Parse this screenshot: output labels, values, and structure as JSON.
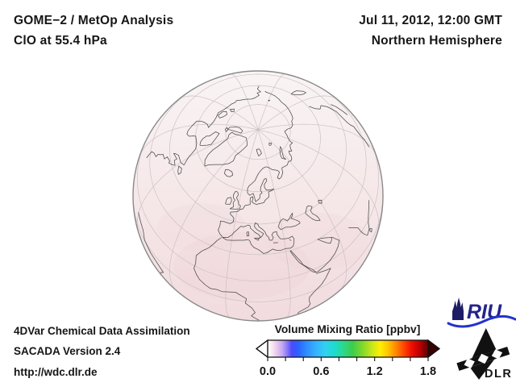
{
  "header": {
    "title_line1": "GOME−2 / MetOp Analysis",
    "title_line2": "ClO at 55.4 hPa",
    "date": "Jul 11, 2012, 12:00 GMT",
    "hemisphere": "Northern Hemisphere"
  },
  "footer": {
    "line1": "4DVar Chemical Data Assimilation",
    "line2": "SACADA Version 2.4",
    "line3": "http://wdc.dlr.de"
  },
  "logos": {
    "riu_text": "RIU",
    "dlr_text": "DLR",
    "riu_color": "#24248c",
    "riu_wave_color": "#2233cc",
    "dlr_color": "#161616"
  },
  "colorbar": {
    "title": "Volume Mixing Ratio [ppbv]",
    "min": 0,
    "max": 1.8,
    "major_ticks": [
      0,
      0.6,
      1.2,
      1.8
    ],
    "tick_labels": [
      "0.0",
      "0.6",
      "1.2",
      "1.8"
    ],
    "minor_tick_step": 0.2,
    "under_arrow_color": "#ffffff",
    "over_arrow_color": "#3a0000",
    "gradient": [
      [
        0.0,
        "#ffffff"
      ],
      [
        0.025,
        "#f7ebf2"
      ],
      [
        0.06,
        "#e6c6ee"
      ],
      [
        0.09,
        "#c3a8f2"
      ],
      [
        0.12,
        "#8c7cf8"
      ],
      [
        0.15,
        "#4b4bff"
      ],
      [
        0.19,
        "#2b62ff"
      ],
      [
        0.24,
        "#2e8cff"
      ],
      [
        0.3,
        "#35b2ff"
      ],
      [
        0.36,
        "#2fd2f0"
      ],
      [
        0.42,
        "#1edccb"
      ],
      [
        0.47,
        "#2ad98e"
      ],
      [
        0.53,
        "#3ecc4a"
      ],
      [
        0.59,
        "#7fd82b"
      ],
      [
        0.65,
        "#c8e61a"
      ],
      [
        0.7,
        "#fdf002"
      ],
      [
        0.75,
        "#ffc400"
      ],
      [
        0.8,
        "#ff8800"
      ],
      [
        0.85,
        "#ff4400"
      ],
      [
        0.895,
        "#f01000"
      ],
      [
        0.945,
        "#c00000"
      ],
      [
        1.0,
        "#5e0000"
      ]
    ]
  },
  "chart_data": {
    "type": "heatmap",
    "title": "GOME−2 / MetOp Analysis, ClO at 55.4 hPa",
    "timestamp": "Jul 11, 2012, 12:00 GMT",
    "region": "Northern Hemisphere",
    "projection": "orthographic globe centered near 58N 15E (North Atlantic / Europe view)",
    "variable": "ClO Volume Mixing Ratio",
    "unit": "ppbv",
    "colorbar_range": [
      0,
      1.8
    ],
    "colorbar_major_ticks": [
      0,
      0.6,
      1.2,
      1.8
    ],
    "colorbar_minor_tick_step": 0.2,
    "colorbar_style": "rainbow (white-violet-blue-cyan-green-yellow-red-dark red) with under/over range arrows",
    "field_summary": "Near-uniform very low ClO values over the whole visible hemisphere (pale white-pink shading, approx 0.0-0.15 ppbv), faintly increasing toward lower latitudes; no enhanced plumes visible.",
    "map_features": "gray coastlines of North America, Greenland, Europe, North Africa, Middle East, Siberia; graticule with 30-degree meridians and 15-degree parallels"
  }
}
